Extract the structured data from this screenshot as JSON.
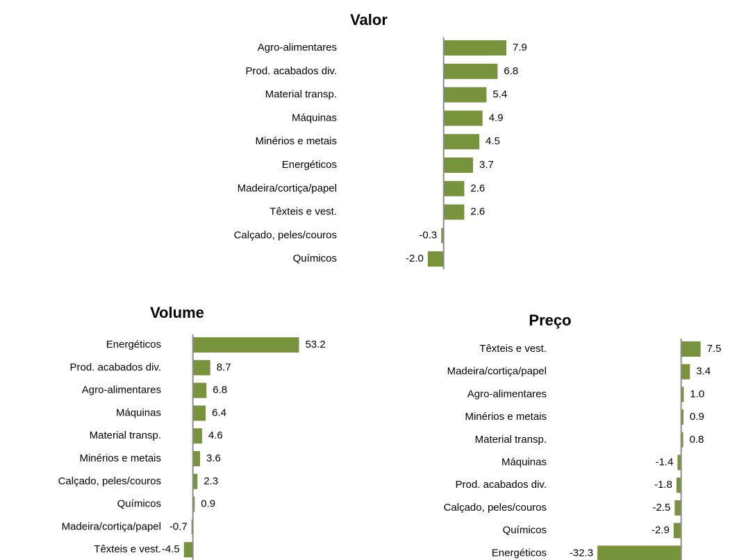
{
  "chart_data": [
    {
      "type": "bar",
      "orientation": "horizontal",
      "title": "Valor",
      "color": "#77933c",
      "categories": [
        "Agro-alimentares",
        "Prod. acabados div.",
        "Material transp.",
        "Máquinas",
        "Minérios e metais",
        "Energéticos",
        "Madeira/cortiça/papel",
        "Têxteis e vest.",
        "Calçado, peles/couros",
        "Químicos"
      ],
      "values": [
        7.9,
        6.8,
        5.4,
        4.9,
        4.5,
        3.7,
        2.6,
        2.6,
        -0.3,
        -2.0
      ],
      "value_labels": [
        "7.9",
        "6.8",
        "5.4",
        "4.9",
        "4.5",
        "3.7",
        "2.6",
        "2.6",
        "-0.3",
        "-2.0"
      ],
      "xlim": [
        -4,
        10
      ]
    },
    {
      "type": "bar",
      "orientation": "horizontal",
      "title": "Volume",
      "color": "#77933c",
      "categories": [
        "Energéticos",
        "Prod. acabados div.",
        "Agro-alimentares",
        "Máquinas",
        "Material transp.",
        "Minérios e metais",
        "Calçado, peles/couros",
        "Químicos",
        "Madeira/cortiça/papel",
        "Têxteis e vest."
      ],
      "values": [
        53.2,
        8.7,
        6.8,
        6.4,
        4.6,
        3.6,
        2.3,
        0.9,
        -0.7,
        -4.5
      ],
      "xlim": [
        -10,
        60
      ]
    },
    {
      "type": "bar",
      "orientation": "horizontal",
      "title": "Preço",
      "color": "#77933c",
      "categories": [
        "Têxteis e vest.",
        "Madeira/cortiça/papel",
        "Agro-alimentares",
        "Minérios e metais",
        "Material transp.",
        "Máquinas",
        "Prod. acabados div.",
        "Calçado, peles/couros",
        "Químicos",
        "Energéticos"
      ],
      "values": [
        7.5,
        3.4,
        1.0,
        0.9,
        0.8,
        -1.4,
        -1.8,
        -2.5,
        -2.9,
        -32.3
      ],
      "value_labels": [
        "7.5",
        "3.4",
        "1.0",
        "0.9",
        "0.8",
        "-1.4",
        "-1.8",
        "-2.5",
        "-2.9",
        "-32.3"
      ],
      "xlim": [
        -35,
        10
      ]
    }
  ]
}
